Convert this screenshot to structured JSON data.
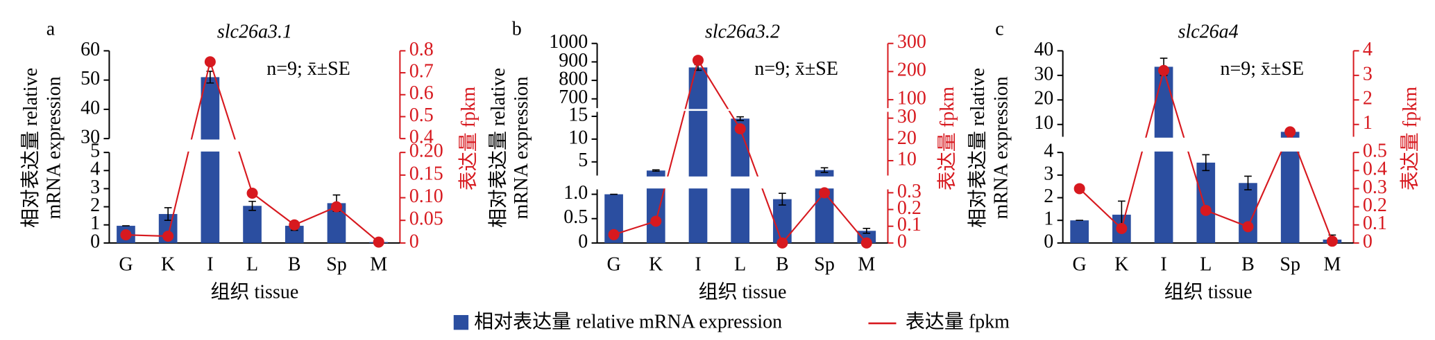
{
  "chart_data": [
    {
      "type": "bar",
      "letter": "a",
      "title": "slc26a3.1",
      "annotation": "n=9; x̄±SE",
      "xlabel": "组织 tissue",
      "ylabel": [
        "相对表达量 relative",
        "mRNA expression"
      ],
      "y2label": "表达量 fpkm",
      "categories": [
        "G",
        "K",
        "I",
        "L",
        "B",
        "Sp",
        "M"
      ],
      "series": [
        {
          "name": "相对表达量 relative mRNA expression",
          "color": "#2b4ea0",
          "values": [
            0.95,
            1.6,
            51,
            2.05,
            0.95,
            2.2,
            0.05
          ],
          "errors": [
            0,
            0.35,
            2,
            0.25,
            0.25,
            0.45,
            0
          ]
        },
        {
          "name": "表达量 fpkm",
          "color": "#d7191f",
          "axis": "y2",
          "values": [
            0.018,
            0.015,
            0.75,
            0.11,
            0.04,
            0.08,
            0.002
          ]
        }
      ],
      "y_segments": [
        {
          "ylim": [
            0,
            5
          ],
          "yticks": [
            0,
            1,
            2,
            3,
            4,
            5
          ]
        },
        {
          "ylim": [
            30,
            60
          ],
          "yticks": [
            30,
            40,
            50,
            60
          ]
        }
      ],
      "y2_segments": [
        {
          "y2lim": [
            0,
            0.2
          ],
          "y2ticks": [
            0,
            0.05,
            {
              "value": 0.1,
              "label": "0.10"
            },
            0.15,
            {
              "value": 0.2,
              "label": "0.20"
            }
          ]
        },
        {
          "y2lim": [
            0.4,
            0.8
          ],
          "y2ticks": [
            0.4,
            0.5,
            0.6,
            0.7,
            0.8
          ]
        }
      ]
    },
    {
      "type": "bar",
      "letter": "b",
      "title": "slc26a3.2",
      "annotation": "n=9; x̄±SE",
      "xlabel": "组织 tissue",
      "ylabel": [
        "相对表达量 relative",
        "mRNA expression"
      ],
      "y2label": "表达量 fpkm",
      "categories": [
        "G",
        "K",
        "I",
        "L",
        "B",
        "Sp",
        "M"
      ],
      "series": [
        {
          "name": "相对表达量 relative mRNA expression",
          "color": "#2b4ea0",
          "values": [
            1.0,
            3.1,
            870,
            14.5,
            0.9,
            3.2,
            0.25
          ],
          "errors": [
            0,
            0.15,
            15,
            0.4,
            0.12,
            0.5,
            0.05
          ]
        },
        {
          "name": "表达量 fpkm",
          "color": "#d7191f",
          "axis": "y2",
          "values": [
            0.05,
            0.13,
            240,
            25,
            0,
            0.3,
            0
          ]
        }
      ],
      "y_segments": [
        {
          "ylim": [
            0,
            1.1
          ],
          "yticks": [
            0,
            0.5,
            {
              "value": 1,
              "label": "1.0"
            }
          ]
        },
        {
          "ylim": [
            2,
            16
          ],
          "yticks": [
            5,
            10,
            15
          ]
        },
        {
          "ylim": [
            650,
            1000
          ],
          "yticks": [
            700,
            800,
            900,
            1000
          ]
        }
      ],
      "y2_segments": [
        {
          "y2lim": [
            0,
            0.32
          ],
          "y2ticks": [
            0,
            0.1,
            0.2,
            0.3
          ]
        },
        {
          "y2lim": [
            3,
            33
          ],
          "y2ticks": [
            10,
            20,
            30
          ]
        },
        {
          "y2lim": [
            70,
            300
          ],
          "y2ticks": [
            100,
            200,
            300
          ]
        }
      ]
    },
    {
      "type": "bar",
      "letter": "c",
      "title": "slc26a4",
      "annotation": "n=9; x̄±SE",
      "xlabel": "组织 tissue",
      "ylabel": [
        "相对表达量 relative",
        "mRNA expression"
      ],
      "y2label": "表达量 fpkm",
      "categories": [
        "G",
        "K",
        "I",
        "L",
        "B",
        "Sp",
        "M"
      ],
      "series": [
        {
          "name": "相对表达量 relative mRNA expression",
          "color": "#2b4ea0",
          "values": [
            1.0,
            1.25,
            33.5,
            3.55,
            2.65,
            7,
            0.15
          ],
          "errors": [
            0,
            0.6,
            3.5,
            0.35,
            0.3,
            1,
            0.2
          ]
        },
        {
          "name": "表达量 fpkm",
          "color": "#d7191f",
          "axis": "y2",
          "values": [
            0.3,
            0.08,
            3.2,
            0.18,
            0.09,
            0.7,
            0.01
          ]
        }
      ],
      "y_segments": [
        {
          "ylim": [
            0,
            4
          ],
          "yticks": [
            0,
            1,
            2,
            3,
            4
          ]
        },
        {
          "ylim": [
            5,
            40
          ],
          "yticks": [
            10,
            20,
            30,
            40
          ]
        }
      ],
      "y2_segments": [
        {
          "y2lim": [
            0,
            0.5
          ],
          "y2ticks": [
            0,
            0.1,
            0.2,
            0.3,
            0.4,
            0.5
          ]
        },
        {
          "y2lim": [
            0.5,
            4
          ],
          "y2ticks": [
            1,
            2,
            3,
            4
          ]
        }
      ]
    }
  ]
}
